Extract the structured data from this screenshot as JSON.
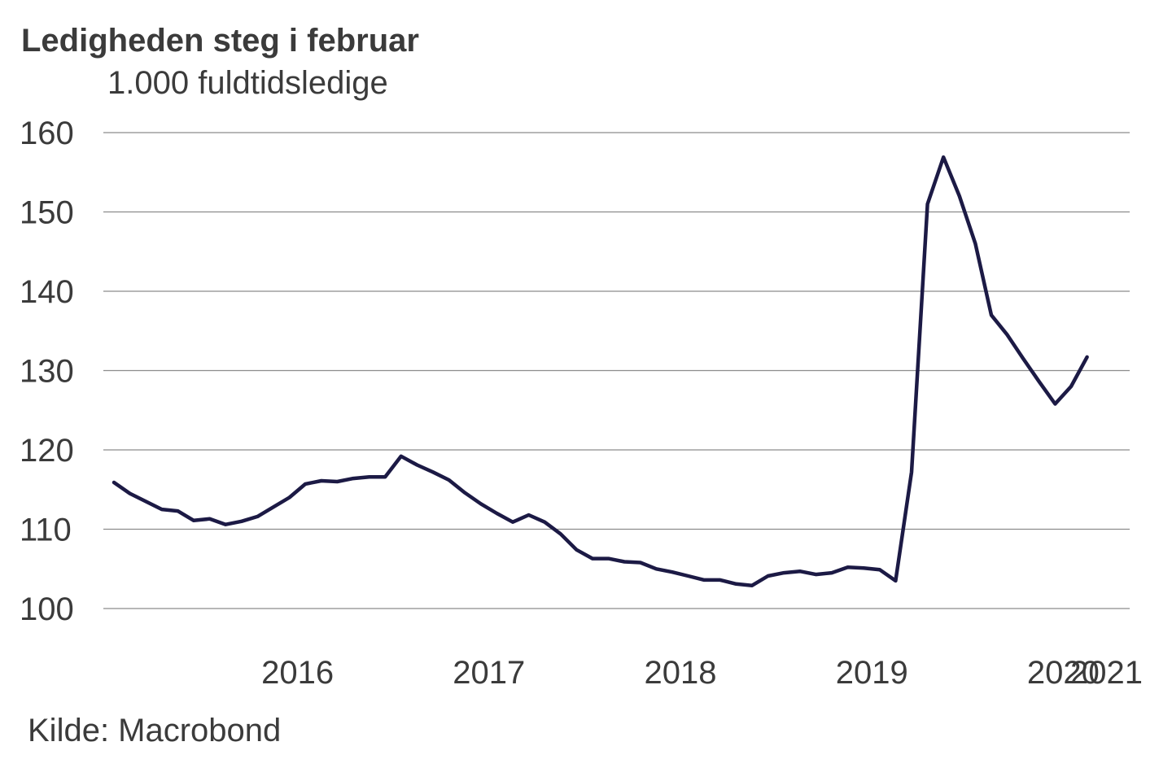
{
  "chart_data": {
    "type": "line",
    "title": "Ledigheden steg i februar",
    "subtitle": "1.000 fuldtidsledige",
    "source": "Kilde: Macrobond",
    "xlabel": "",
    "ylabel": "",
    "ylim": [
      100,
      160
    ],
    "yticks": [
      100,
      110,
      120,
      130,
      140,
      150,
      160
    ],
    "xticks": [
      {
        "label": "2016",
        "month": 0
      },
      {
        "label": "2017",
        "month": 12
      },
      {
        "label": "2018",
        "month": 24
      },
      {
        "label": "2019",
        "month": 36
      },
      {
        "label": "2020",
        "month": 48
      },
      {
        "label": "2021",
        "month": 60
      }
    ],
    "grid": true,
    "legend": "none",
    "line_color": "#1c1a45",
    "series": [
      {
        "start": "2015-07",
        "values": [
          115.9,
          114.5,
          113.5,
          112.5,
          112.3,
          111.1,
          111.3,
          110.6,
          111.0,
          111.6,
          112.8,
          114.0,
          115.7,
          116.1,
          116.0,
          116.4,
          116.6,
          116.6,
          119.2,
          118.1,
          117.2,
          116.2,
          114.6,
          113.2,
          112.0,
          110.9,
          111.8,
          110.9,
          109.4,
          107.4,
          106.3,
          106.3,
          105.9,
          105.8,
          105.0,
          104.6,
          104.1,
          103.6,
          103.6,
          103.1,
          102.9,
          104.1,
          104.5,
          104.7,
          104.3,
          104.5,
          105.2,
          105.1,
          104.9,
          103.5,
          117.2,
          151.0,
          156.9,
          152.0,
          146.0,
          137.0,
          134.5,
          131.5,
          128.6,
          125.8,
          128.0,
          131.7
        ]
      }
    ]
  }
}
